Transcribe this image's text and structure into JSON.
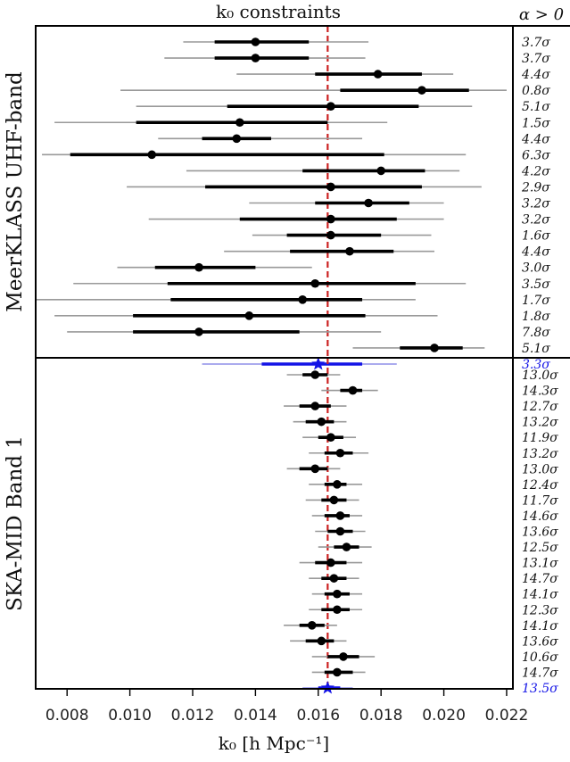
{
  "chart_data": {
    "type": "forest-errorbar",
    "title": "k₀ constraints",
    "xlabel": "k₀ [h Mpc⁻¹]",
    "right_header": "α > 0",
    "xlim": [
      0.007,
      0.0222
    ],
    "xticks": [
      {
        "value": 0.008,
        "label": "0.008"
      },
      {
        "value": 0.01,
        "label": "0.010"
      },
      {
        "value": 0.012,
        "label": "0.012"
      },
      {
        "value": 0.014,
        "label": "0.014"
      },
      {
        "value": 0.016,
        "label": "0.016"
      },
      {
        "value": 0.018,
        "label": "0.018"
      },
      {
        "value": 0.02,
        "label": "0.020"
      },
      {
        "value": 0.022,
        "label": "0.022"
      }
    ],
    "reference_value": 0.0163,
    "colors": {
      "point": "#000000",
      "inner": "#000000",
      "outer": "#999999",
      "combined": "#1414e6",
      "combined_outer": "#8f8fe8",
      "reference": "#cc2222"
    },
    "panels": [
      {
        "name": "MeerKLASS UHF-band",
        "rows": [
          {
            "x": 0.014,
            "inner": [
              0.0127,
              0.0157
            ],
            "outer": [
              0.0117,
              0.0176
            ],
            "sigma": "3.7σ"
          },
          {
            "x": 0.014,
            "inner": [
              0.0127,
              0.0157
            ],
            "outer": [
              0.0111,
              0.0175
            ],
            "sigma": "3.7σ"
          },
          {
            "x": 0.0179,
            "inner": [
              0.0159,
              0.0193
            ],
            "outer": [
              0.0134,
              0.0203
            ],
            "sigma": "4.4σ"
          },
          {
            "x": 0.0193,
            "inner": [
              0.0167,
              0.0208
            ],
            "outer": [
              0.0097,
              0.022
            ],
            "sigma": "0.8σ"
          },
          {
            "x": 0.0164,
            "inner": [
              0.0131,
              0.0192
            ],
            "outer": [
              0.0102,
              0.0209
            ],
            "sigma": "5.1σ"
          },
          {
            "x": 0.0135,
            "inner": [
              0.0102,
              0.0163
            ],
            "outer": [
              0.0076,
              0.0182
            ],
            "sigma": "1.5σ"
          },
          {
            "x": 0.0134,
            "inner": [
              0.0123,
              0.0145
            ],
            "outer": [
              0.0109,
              0.0174
            ],
            "sigma": "4.4σ"
          },
          {
            "x": 0.0107,
            "inner": [
              0.0081,
              0.0181
            ],
            "outer": [
              0.0072,
              0.0207
            ],
            "sigma": "6.3σ"
          },
          {
            "x": 0.018,
            "inner": [
              0.0155,
              0.0194
            ],
            "outer": [
              0.0118,
              0.0205
            ],
            "sigma": "4.2σ"
          },
          {
            "x": 0.0164,
            "inner": [
              0.0124,
              0.0193
            ],
            "outer": [
              0.0099,
              0.0212
            ],
            "sigma": "2.9σ"
          },
          {
            "x": 0.0176,
            "inner": [
              0.0159,
              0.0189
            ],
            "outer": [
              0.0138,
              0.02
            ],
            "sigma": "3.2σ"
          },
          {
            "x": 0.0164,
            "inner": [
              0.0135,
              0.0185
            ],
            "outer": [
              0.0106,
              0.02
            ],
            "sigma": "3.2σ"
          },
          {
            "x": 0.0164,
            "inner": [
              0.015,
              0.018
            ],
            "outer": [
              0.0139,
              0.0196
            ],
            "sigma": "1.6σ"
          },
          {
            "x": 0.017,
            "inner": [
              0.0151,
              0.0184
            ],
            "outer": [
              0.013,
              0.0197
            ],
            "sigma": "4.4σ"
          },
          {
            "x": 0.0122,
            "inner": [
              0.0108,
              0.014
            ],
            "outer": [
              0.0096,
              0.0158
            ],
            "sigma": "3.0σ"
          },
          {
            "x": 0.0159,
            "inner": [
              0.0112,
              0.0191
            ],
            "outer": [
              0.0082,
              0.0207
            ],
            "sigma": "3.5σ"
          },
          {
            "x": 0.0155,
            "inner": [
              0.0113,
              0.0174
            ],
            "outer": [
              0.007,
              0.0191
            ],
            "sigma": "1.7σ"
          },
          {
            "x": 0.0138,
            "inner": [
              0.0101,
              0.0175
            ],
            "outer": [
              0.0076,
              0.0198
            ],
            "sigma": "1.8σ"
          },
          {
            "x": 0.0122,
            "inner": [
              0.0101,
              0.0154
            ],
            "outer": [
              0.008,
              0.018
            ],
            "sigma": "7.8σ"
          },
          {
            "x": 0.0197,
            "inner": [
              0.0186,
              0.0206
            ],
            "outer": [
              0.0171,
              0.0213
            ],
            "sigma": "5.1σ"
          }
        ],
        "combined": {
          "x": 0.016,
          "inner": [
            0.0142,
            0.0174
          ],
          "outer": [
            0.0123,
            0.0185
          ],
          "sigma": "3.3σ"
        }
      },
      {
        "name": "SKA-MID Band 1",
        "rows": [
          {
            "x": 0.0159,
            "inner": [
              0.0155,
              0.0163
            ],
            "outer": [
              0.015,
              0.0167
            ],
            "sigma": "13.0σ"
          },
          {
            "x": 0.0171,
            "inner": [
              0.0167,
              0.0174
            ],
            "outer": [
              0.0161,
              0.0179
            ],
            "sigma": "14.3σ"
          },
          {
            "x": 0.0159,
            "inner": [
              0.0154,
              0.0164
            ],
            "outer": [
              0.0149,
              0.0169
            ],
            "sigma": "12.7σ"
          },
          {
            "x": 0.0161,
            "inner": [
              0.0156,
              0.0165
            ],
            "outer": [
              0.0152,
              0.0169
            ],
            "sigma": "13.2σ"
          },
          {
            "x": 0.0164,
            "inner": [
              0.016,
              0.0168
            ],
            "outer": [
              0.0155,
              0.0172
            ],
            "sigma": "11.9σ"
          },
          {
            "x": 0.0167,
            "inner": [
              0.0162,
              0.0171
            ],
            "outer": [
              0.0157,
              0.0176
            ],
            "sigma": "13.2σ"
          },
          {
            "x": 0.0159,
            "inner": [
              0.0154,
              0.0163
            ],
            "outer": [
              0.015,
              0.0167
            ],
            "sigma": "13.0σ"
          },
          {
            "x": 0.0166,
            "inner": [
              0.0162,
              0.0169
            ],
            "outer": [
              0.0157,
              0.0174
            ],
            "sigma": "12.4σ"
          },
          {
            "x": 0.0165,
            "inner": [
              0.0161,
              0.0169
            ],
            "outer": [
              0.0156,
              0.0173
            ],
            "sigma": "11.7σ"
          },
          {
            "x": 0.0167,
            "inner": [
              0.0162,
              0.017
            ],
            "outer": [
              0.0158,
              0.0174
            ],
            "sigma": "14.6σ"
          },
          {
            "x": 0.0167,
            "inner": [
              0.0163,
              0.0171
            ],
            "outer": [
              0.0159,
              0.0175
            ],
            "sigma": "13.6σ"
          },
          {
            "x": 0.0169,
            "inner": [
              0.0165,
              0.0173
            ],
            "outer": [
              0.016,
              0.0177
            ],
            "sigma": "12.5σ"
          },
          {
            "x": 0.0164,
            "inner": [
              0.0159,
              0.0169
            ],
            "outer": [
              0.0154,
              0.0174
            ],
            "sigma": "13.1σ"
          },
          {
            "x": 0.0165,
            "inner": [
              0.0161,
              0.0169
            ],
            "outer": [
              0.0157,
              0.0173
            ],
            "sigma": "14.7σ"
          },
          {
            "x": 0.0166,
            "inner": [
              0.0162,
              0.017
            ],
            "outer": [
              0.0158,
              0.0174
            ],
            "sigma": "14.1σ"
          },
          {
            "x": 0.0166,
            "inner": [
              0.0161,
              0.017
            ],
            "outer": [
              0.0157,
              0.0174
            ],
            "sigma": "12.3σ"
          },
          {
            "x": 0.0158,
            "inner": [
              0.0154,
              0.0162
            ],
            "outer": [
              0.0149,
              0.0166
            ],
            "sigma": "14.1σ"
          },
          {
            "x": 0.0161,
            "inner": [
              0.0156,
              0.0165
            ],
            "outer": [
              0.0151,
              0.0169
            ],
            "sigma": "13.6σ"
          },
          {
            "x": 0.0168,
            "inner": [
              0.0163,
              0.0173
            ],
            "outer": [
              0.0158,
              0.0178
            ],
            "sigma": "10.6σ"
          },
          {
            "x": 0.0166,
            "inner": [
              0.0162,
              0.0171
            ],
            "outer": [
              0.0158,
              0.0175
            ],
            "sigma": "14.7σ"
          }
        ],
        "combined": {
          "x": 0.0163,
          "inner": [
            0.016,
            0.0167
          ],
          "outer": [
            0.0155,
            0.0171
          ],
          "sigma": "13.5σ"
        }
      }
    ]
  }
}
